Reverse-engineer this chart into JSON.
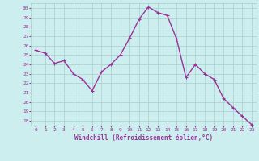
{
  "x": [
    0,
    1,
    2,
    3,
    4,
    5,
    6,
    7,
    8,
    9,
    10,
    11,
    12,
    13,
    14,
    15,
    16,
    17,
    18,
    19,
    20,
    21,
    22,
    23
  ],
  "y": [
    25.5,
    25.2,
    24.1,
    24.4,
    23.0,
    22.4,
    21.2,
    23.2,
    24.0,
    25.0,
    26.8,
    28.8,
    30.1,
    29.5,
    29.2,
    26.7,
    22.6,
    24.0,
    23.0,
    22.4,
    20.4,
    19.4,
    18.5,
    17.6
  ],
  "line_color": "#993399",
  "marker": "+",
  "marker_size": 3,
  "line_width": 1.0,
  "bg_color": "#cceeee",
  "grid_color": "#aacccc",
  "xlabel": "Windchill (Refroidissement éolien,°C)",
  "xlabel_color": "#993399",
  "tick_color": "#993399",
  "ylabel_ticks": [
    18,
    19,
    20,
    21,
    22,
    23,
    24,
    25,
    26,
    27,
    28,
    29,
    30
  ],
  "xlim": [
    -0.5,
    23.5
  ],
  "ylim": [
    17.5,
    30.5
  ],
  "figsize": [
    3.2,
    2.0
  ],
  "dpi": 100
}
